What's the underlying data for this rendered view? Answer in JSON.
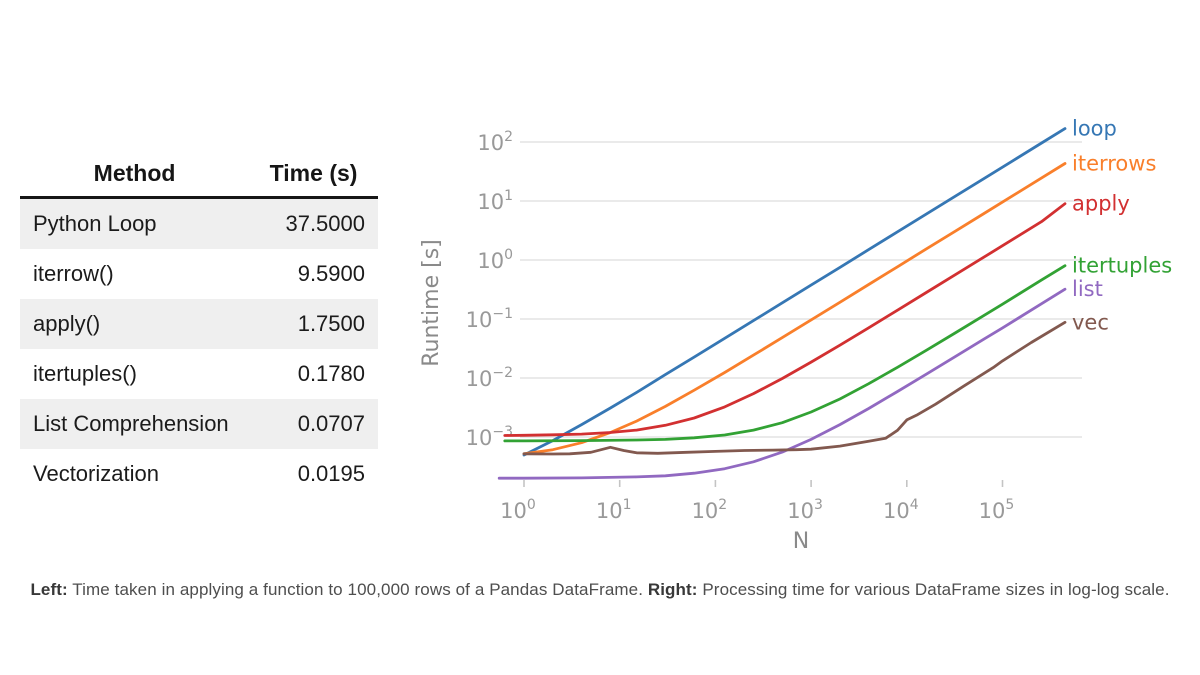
{
  "page": {
    "background": "#ffffff"
  },
  "table": {
    "headers": [
      "Method",
      "Time (s)"
    ],
    "rows": [
      [
        "Python Loop",
        "37.5000"
      ],
      [
        "iterrow()",
        "9.5900"
      ],
      [
        "apply()",
        "1.7500"
      ],
      [
        "itertuples()",
        "0.1780"
      ],
      [
        "List Comprehension",
        "0.0707"
      ],
      [
        "Vectorization",
        "0.0195"
      ]
    ],
    "stripe_color": "#efefef",
    "rule_color": "#161616"
  },
  "chart_data": {
    "type": "line",
    "title": "",
    "xlabel": "N",
    "ylabel": "Runtime [s]",
    "x_scale": "log",
    "y_scale": "log",
    "xlim": [
      0.55,
      700000
    ],
    "ylim": [
      0.00017,
      250
    ],
    "grid": "horizontal",
    "legend_position": "line-end-labels",
    "x_tick_exponents": [
      0,
      1,
      2,
      3,
      4,
      5
    ],
    "y_tick_exponents": [
      2,
      1,
      0,
      -1,
      -2,
      -3
    ],
    "colors": {
      "gridline": "#e3e3e3",
      "tick_label": "#999999",
      "axis_label": "#8a8a8a",
      "tick_mark": "#c4c4c4"
    },
    "series": [
      {
        "name": "loop",
        "color": "#3677b4",
        "points": [
          [
            1,
            0.000495
          ],
          [
            2,
            0.00087
          ],
          [
            4,
            0.00162
          ],
          [
            8,
            0.0031
          ],
          [
            15,
            0.0057
          ],
          [
            30,
            0.0114
          ],
          [
            60,
            0.0226
          ],
          [
            125,
            0.047
          ],
          [
            250,
            0.094
          ],
          [
            500,
            0.188
          ],
          [
            1000,
            0.375
          ],
          [
            2000,
            0.75
          ],
          [
            4000,
            1.5
          ],
          [
            8000,
            3.0
          ],
          [
            16000,
            6.0
          ],
          [
            32000,
            12
          ],
          [
            64000,
            24
          ],
          [
            128000,
            48
          ],
          [
            256000,
            96
          ],
          [
            450000,
            169
          ]
        ]
      },
      {
        "name": "iterrows",
        "color": "#f97f2b",
        "points": [
          [
            1,
            0.00052
          ],
          [
            2,
            0.00061
          ],
          [
            4,
            0.0008
          ],
          [
            8,
            0.00119
          ],
          [
            15,
            0.00186
          ],
          [
            30,
            0.0033
          ],
          [
            60,
            0.0062
          ],
          [
            125,
            0.0124
          ],
          [
            250,
            0.0244
          ],
          [
            500,
            0.0484
          ],
          [
            1000,
            0.0964
          ],
          [
            2000,
            0.192
          ],
          [
            4000,
            0.384
          ],
          [
            8000,
            0.768
          ],
          [
            16000,
            1.54
          ],
          [
            32000,
            3.07
          ],
          [
            64000,
            6.14
          ],
          [
            128000,
            12.3
          ],
          [
            256000,
            24.6
          ],
          [
            450000,
            43.2
          ]
        ]
      },
      {
        "name": "apply",
        "color": "#d23031",
        "points": [
          [
            0.63,
            0.00106
          ],
          [
            1,
            0.00107
          ],
          [
            2,
            0.00109
          ],
          [
            4,
            0.00112
          ],
          [
            8,
            0.00119
          ],
          [
            15,
            0.00131
          ],
          [
            30,
            0.00158
          ],
          [
            60,
            0.0021
          ],
          [
            125,
            0.00324
          ],
          [
            250,
            0.00543
          ],
          [
            500,
            0.0098
          ],
          [
            1000,
            0.0186
          ],
          [
            2000,
            0.036
          ],
          [
            4000,
            0.071
          ],
          [
            8000,
            0.141
          ],
          [
            16000,
            0.281
          ],
          [
            32000,
            0.561
          ],
          [
            64000,
            1.12
          ],
          [
            100000,
            1.75
          ],
          [
            256000,
            4.48
          ],
          [
            450000,
            9.0
          ]
        ]
      },
      {
        "name": "itertuples",
        "color": "#32a234",
        "points": [
          [
            0.63,
            0.00086
          ],
          [
            1,
            0.00086
          ],
          [
            4,
            0.00087
          ],
          [
            15,
            0.00089
          ],
          [
            30,
            0.00091
          ],
          [
            60,
            0.00097
          ],
          [
            125,
            0.00108
          ],
          [
            250,
            0.00131
          ],
          [
            500,
            0.00175
          ],
          [
            1000,
            0.00265
          ],
          [
            2000,
            0.0044
          ],
          [
            4000,
            0.008
          ],
          [
            8000,
            0.0152
          ],
          [
            16000,
            0.0295
          ],
          [
            32000,
            0.058
          ],
          [
            64000,
            0.115
          ],
          [
            100000,
            0.178
          ],
          [
            256000,
            0.46
          ],
          [
            450000,
            0.8
          ]
        ]
      },
      {
        "name": "list",
        "color": "#9169c1",
        "points": [
          [
            0.55,
            0.0002
          ],
          [
            1,
            0.0002
          ],
          [
            4,
            0.000203
          ],
          [
            15,
            0.000211
          ],
          [
            30,
            0.00022
          ],
          [
            60,
            0.000243
          ],
          [
            125,
            0.00029
          ],
          [
            250,
            0.00038
          ],
          [
            500,
            0.000555
          ],
          [
            1000,
            0.00091
          ],
          [
            2000,
            0.00162
          ],
          [
            4000,
            0.00304
          ],
          [
            8000,
            0.0059
          ],
          [
            16000,
            0.0116
          ],
          [
            32000,
            0.023
          ],
          [
            64000,
            0.0457
          ],
          [
            100000,
            0.0707
          ],
          [
            256000,
            0.182
          ],
          [
            450000,
            0.32
          ]
        ]
      },
      {
        "name": "vec",
        "color": "#82594f",
        "points": [
          [
            1,
            0.00052
          ],
          [
            2,
            0.000515
          ],
          [
            3,
            0.00052
          ],
          [
            5,
            0.00055
          ],
          [
            8,
            0.00067
          ],
          [
            11,
            0.00059
          ],
          [
            15,
            0.00054
          ],
          [
            25,
            0.00053
          ],
          [
            50,
            0.00055
          ],
          [
            100,
            0.00057
          ],
          [
            200,
            0.00059
          ],
          [
            400,
            0.0006
          ],
          [
            700,
            0.00061
          ],
          [
            1000,
            0.00062
          ],
          [
            2000,
            0.0007
          ],
          [
            4000,
            0.00085
          ],
          [
            6000,
            0.00095
          ],
          [
            8000,
            0.0013
          ],
          [
            10000,
            0.00195
          ],
          [
            13000,
            0.0024
          ],
          [
            20000,
            0.0036
          ],
          [
            40000,
            0.0074
          ],
          [
            80000,
            0.015
          ],
          [
            100000,
            0.0195
          ],
          [
            200000,
            0.04
          ],
          [
            450000,
            0.088
          ]
        ]
      }
    ]
  },
  "caption": {
    "left_label": "Left:",
    "left_text": " Time taken in applying a function to 100,000 rows of a Pandas DataFrame. ",
    "right_label": "Right:",
    "right_text": " Processing time for various DataFrame sizes in log-log scale."
  }
}
